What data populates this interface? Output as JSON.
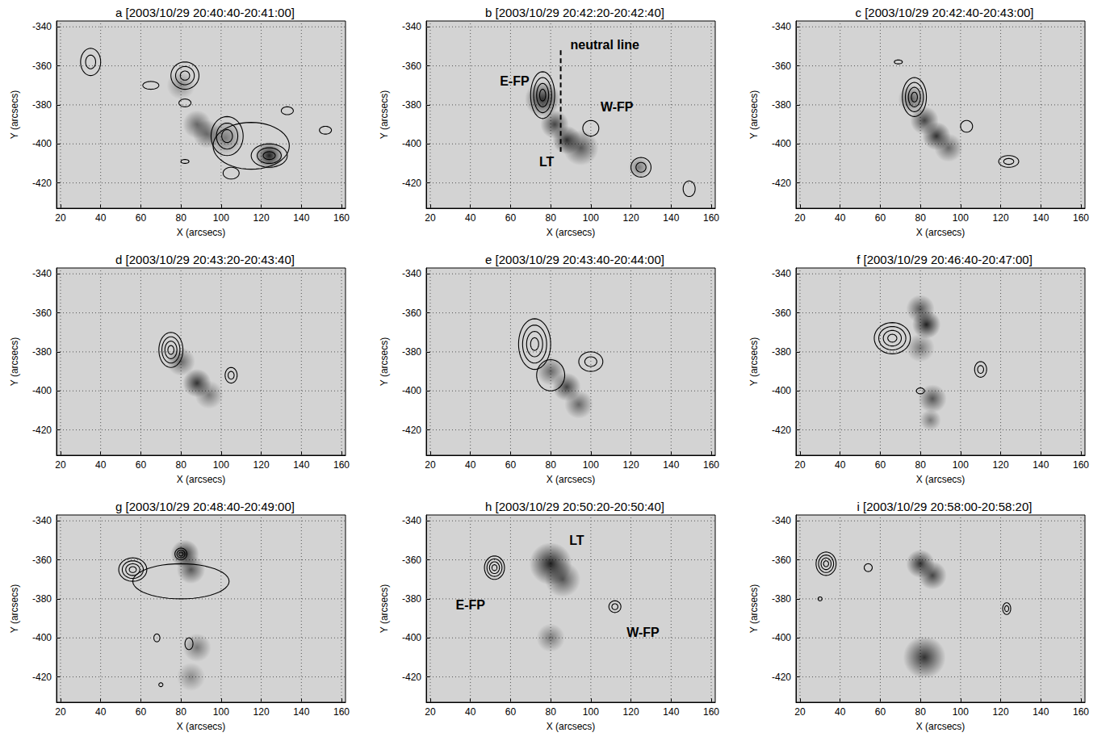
{
  "chart_data": [
    {
      "type": "contour",
      "title": "a [2003/10/29 20:40:40-20:41:00]",
      "x_label": "X (arcsecs)",
      "y_label": "Y (arcsecs)",
      "xlim": [
        18,
        162
      ],
      "ylim": [
        -433,
        -337
      ],
      "xticks": [
        20,
        40,
        60,
        80,
        100,
        120,
        140,
        160
      ],
      "yticks": [
        -420,
        -400,
        -380,
        -360,
        -340
      ],
      "grid": true,
      "contours": [
        {
          "x": 35,
          "y": -358,
          "rx": 5,
          "ry": 7,
          "levels": 2
        },
        {
          "x": 82,
          "y": -365,
          "rx": 7,
          "ry": 7,
          "levels": 3
        },
        {
          "x": 65,
          "y": -370,
          "rx": 4,
          "ry": 2,
          "levels": 1
        },
        {
          "x": 82,
          "y": -379,
          "rx": 3,
          "ry": 2,
          "levels": 1
        },
        {
          "x": 133,
          "y": -383,
          "rx": 3,
          "ry": 2,
          "levels": 1
        },
        {
          "x": 152,
          "y": -393,
          "rx": 3,
          "ry": 2,
          "levels": 1
        },
        {
          "x": 82,
          "y": -409,
          "rx": 2,
          "ry": 1,
          "levels": 1
        },
        {
          "x": 105,
          "y": -415,
          "rx": 4,
          "ry": 3,
          "levels": 1
        },
        {
          "x": 103,
          "y": -396,
          "rx": 8,
          "ry": 10,
          "levels": 3
        },
        {
          "x": 124,
          "y": -406,
          "rx": 9,
          "ry": 6,
          "levels": 3
        },
        {
          "x": 115,
          "y": -401,
          "rx": 19,
          "ry": 12,
          "levels": 1
        }
      ],
      "emission": [
        {
          "x": 124,
          "y": -406,
          "r": 4,
          "intensity": 1
        },
        {
          "x": 88,
          "y": -390,
          "r": 4,
          "intensity": 0.6
        },
        {
          "x": 93,
          "y": -395,
          "r": 4,
          "intensity": 0.6
        },
        {
          "x": 102,
          "y": -397,
          "r": 5,
          "intensity": 0.5
        },
        {
          "x": 80,
          "y": -370,
          "r": 4,
          "intensity": 0.4
        }
      ],
      "annotations": [],
      "lines": []
    },
    {
      "type": "contour",
      "title": "b [2003/10/29 20:42:20-20:42:40]",
      "x_label": "X (arcsecs)",
      "y_label": "Y (arcsecs)",
      "xlim": [
        18,
        162
      ],
      "ylim": [
        -433,
        -337
      ],
      "xticks": [
        20,
        40,
        60,
        80,
        100,
        120,
        140,
        160
      ],
      "yticks": [
        -420,
        -400,
        -380,
        -360,
        -340
      ],
      "grid": true,
      "contours": [
        {
          "x": 76,
          "y": -375,
          "rx": 6,
          "ry": 12,
          "levels": 4
        },
        {
          "x": 100,
          "y": -392,
          "rx": 4,
          "ry": 4,
          "levels": 1
        },
        {
          "x": 125,
          "y": -412,
          "rx": 5,
          "ry": 5,
          "levels": 2
        },
        {
          "x": 149,
          "y": -423,
          "rx": 3,
          "ry": 4,
          "levels": 1
        }
      ],
      "emission": [
        {
          "x": 76,
          "y": -377,
          "r": 5,
          "intensity": 0.9
        },
        {
          "x": 82,
          "y": -390,
          "r": 4,
          "intensity": 0.8
        },
        {
          "x": 88,
          "y": -398,
          "r": 4,
          "intensity": 0.9
        },
        {
          "x": 95,
          "y": -402,
          "r": 5,
          "intensity": 0.7
        },
        {
          "x": 124,
          "y": -412,
          "r": 3,
          "intensity": 0.5
        }
      ],
      "annotations": [
        {
          "text": "E-FP",
          "x": 62,
          "y": -368
        },
        {
          "text": "W-FP",
          "x": 113,
          "y": -381
        },
        {
          "text": "LT",
          "x": 78,
          "y": -409
        },
        {
          "text": "neutral line",
          "x": 107,
          "y": -349
        }
      ],
      "lines": [
        {
          "x": [
            85,
            85
          ],
          "y": [
            -352,
            -404
          ],
          "line_style": "dashed"
        }
      ]
    },
    {
      "type": "contour",
      "title": "c [2003/10/29 20:42:40-20:43:00]",
      "x_label": "X (arcsecs)",
      "y_label": "Y (arcsecs)",
      "xlim": [
        18,
        162
      ],
      "ylim": [
        -433,
        -337
      ],
      "xticks": [
        20,
        40,
        60,
        80,
        100,
        120,
        140,
        160
      ],
      "yticks": [
        -420,
        -400,
        -380,
        -360,
        -340
      ],
      "grid": true,
      "contours": [
        {
          "x": 77,
          "y": -376,
          "rx": 6,
          "ry": 10,
          "levels": 4
        },
        {
          "x": 69,
          "y": -358,
          "rx": 2,
          "ry": 1,
          "levels": 1
        },
        {
          "x": 103,
          "y": -391,
          "rx": 3,
          "ry": 3,
          "levels": 1
        },
        {
          "x": 124,
          "y": -409,
          "rx": 5,
          "ry": 3,
          "levels": 2
        }
      ],
      "emission": [
        {
          "x": 76,
          "y": -377,
          "r": 4,
          "intensity": 0.6
        },
        {
          "x": 82,
          "y": -388,
          "r": 4,
          "intensity": 0.8
        },
        {
          "x": 88,
          "y": -396,
          "r": 4,
          "intensity": 0.9
        },
        {
          "x": 94,
          "y": -402,
          "r": 4,
          "intensity": 0.6
        }
      ],
      "annotations": [],
      "lines": []
    },
    {
      "type": "contour",
      "title": "d [2003/10/29 20:43:20-20:43:40]",
      "x_label": "X (arcsecs)",
      "y_label": "Y (arcsecs)",
      "xlim": [
        18,
        162
      ],
      "ylim": [
        -433,
        -337
      ],
      "xticks": [
        20,
        40,
        60,
        80,
        100,
        120,
        140,
        160
      ],
      "yticks": [
        -420,
        -400,
        -380,
        -360,
        -340
      ],
      "grid": true,
      "contours": [
        {
          "x": 75,
          "y": -379,
          "rx": 6,
          "ry": 9,
          "levels": 4
        },
        {
          "x": 105,
          "y": -392,
          "rx": 3,
          "ry": 4,
          "levels": 2
        }
      ],
      "emission": [
        {
          "x": 80,
          "y": -385,
          "r": 4,
          "intensity": 0.6
        },
        {
          "x": 88,
          "y": -396,
          "r": 4,
          "intensity": 0.9
        },
        {
          "x": 94,
          "y": -402,
          "r": 4,
          "intensity": 0.5
        }
      ],
      "annotations": [],
      "lines": []
    },
    {
      "type": "contour",
      "title": "e [2003/10/29 20:43:40-20:44:00]",
      "x_label": "X (arcsecs)",
      "y_label": "Y (arcsecs)",
      "xlim": [
        18,
        162
      ],
      "ylim": [
        -433,
        -337
      ],
      "xticks": [
        20,
        40,
        60,
        80,
        100,
        120,
        140,
        160
      ],
      "yticks": [
        -420,
        -400,
        -380,
        -360,
        -340
      ],
      "grid": true,
      "contours": [
        {
          "x": 72,
          "y": -376,
          "rx": 8,
          "ry": 13,
          "levels": 4
        },
        {
          "x": 80,
          "y": -392,
          "rx": 7,
          "ry": 8,
          "levels": 1
        },
        {
          "x": 100,
          "y": -385,
          "rx": 6,
          "ry": 5,
          "levels": 2
        }
      ],
      "emission": [
        {
          "x": 80,
          "y": -390,
          "r": 4,
          "intensity": 0.6
        },
        {
          "x": 88,
          "y": -398,
          "r": 4,
          "intensity": 0.8
        },
        {
          "x": 94,
          "y": -407,
          "r": 4,
          "intensity": 0.6
        }
      ],
      "annotations": [],
      "lines": []
    },
    {
      "type": "contour",
      "title": "f [2003/10/29 20:46:40-20:47:00]",
      "x_label": "X (arcsecs)",
      "y_label": "Y (arcsecs)",
      "xlim": [
        18,
        162
      ],
      "ylim": [
        -433,
        -337
      ],
      "xticks": [
        20,
        40,
        60,
        80,
        100,
        120,
        140,
        160
      ],
      "yticks": [
        -420,
        -400,
        -380,
        -360,
        -340
      ],
      "grid": true,
      "contours": [
        {
          "x": 66,
          "y": -373,
          "rx": 9,
          "ry": 8,
          "levels": 4
        },
        {
          "x": 110,
          "y": -389,
          "rx": 3,
          "ry": 4,
          "levels": 2
        },
        {
          "x": 80,
          "y": -400,
          "rx": 2,
          "ry": 1.5,
          "levels": 1
        }
      ],
      "emission": [
        {
          "x": 83,
          "y": -366,
          "r": 4,
          "intensity": 1
        },
        {
          "x": 80,
          "y": -358,
          "r": 4,
          "intensity": 0.7
        },
        {
          "x": 80,
          "y": -378,
          "r": 4,
          "intensity": 0.5
        },
        {
          "x": 86,
          "y": -404,
          "r": 4,
          "intensity": 0.7
        },
        {
          "x": 85,
          "y": -415,
          "r": 3,
          "intensity": 0.5
        }
      ],
      "annotations": [],
      "lines": []
    },
    {
      "type": "contour",
      "title": "g [2003/10/29 20:48:40-20:49:00]",
      "x_label": "X (arcsecs)",
      "y_label": "Y (arcsecs)",
      "xlim": [
        18,
        162
      ],
      "ylim": [
        -433,
        -337
      ],
      "xticks": [
        20,
        40,
        60,
        80,
        100,
        120,
        140,
        160
      ],
      "yticks": [
        -420,
        -400,
        -380,
        -360,
        -340
      ],
      "grid": true,
      "contours": [
        {
          "x": 56,
          "y": -365,
          "rx": 7,
          "ry": 6,
          "levels": 4
        },
        {
          "x": 80,
          "y": -357,
          "rx": 3,
          "ry": 3,
          "levels": 3
        },
        {
          "x": 80,
          "y": -371,
          "rx": 24,
          "ry": 9,
          "levels": 1
        },
        {
          "x": 68,
          "y": -400,
          "rx": 1.5,
          "ry": 2,
          "levels": 1
        },
        {
          "x": 84,
          "y": -403,
          "rx": 2,
          "ry": 3,
          "levels": 1
        },
        {
          "x": 70,
          "y": -424,
          "rx": 1,
          "ry": 1,
          "levels": 1
        }
      ],
      "emission": [
        {
          "x": 82,
          "y": -357,
          "r": 4,
          "intensity": 0.9
        },
        {
          "x": 85,
          "y": -365,
          "r": 4,
          "intensity": 0.7
        },
        {
          "x": 88,
          "y": -405,
          "r": 4,
          "intensity": 0.5
        },
        {
          "x": 85,
          "y": -420,
          "r": 4,
          "intensity": 0.4
        }
      ],
      "annotations": [],
      "lines": []
    },
    {
      "type": "contour",
      "title": "h [2003/10/29 20:50:20-20:50:40]",
      "x_label": "X (arcsecs)",
      "y_label": "Y (arcsecs)",
      "xlim": [
        18,
        162
      ],
      "ylim": [
        -433,
        -337
      ],
      "xticks": [
        20,
        40,
        60,
        80,
        100,
        120,
        140,
        160
      ],
      "yticks": [
        -420,
        -400,
        -380,
        -360,
        -340
      ],
      "grid": true,
      "contours": [
        {
          "x": 52,
          "y": -364,
          "rx": 5,
          "ry": 6,
          "levels": 4
        },
        {
          "x": 112,
          "y": -384,
          "rx": 3,
          "ry": 3,
          "levels": 2
        }
      ],
      "emission": [
        {
          "x": 80,
          "y": -362,
          "r": 6,
          "intensity": 1
        },
        {
          "x": 86,
          "y": -370,
          "r": 5,
          "intensity": 0.7
        },
        {
          "x": 80,
          "y": -400,
          "r": 4,
          "intensity": 0.5
        }
      ],
      "annotations": [
        {
          "text": "E-FP",
          "x": 40,
          "y": -383
        },
        {
          "text": "W-FP",
          "x": 126,
          "y": -397
        },
        {
          "text": "LT",
          "x": 93,
          "y": -350
        }
      ],
      "lines": []
    },
    {
      "type": "contour",
      "title": "i [2003/10/29 20:58:00-20:58:20]",
      "x_label": "X (arcsecs)",
      "y_label": "Y (arcsecs)",
      "xlim": [
        18,
        162
      ],
      "ylim": [
        -433,
        -337
      ],
      "xticks": [
        20,
        40,
        60,
        80,
        100,
        120,
        140,
        160
      ],
      "yticks": [
        -420,
        -400,
        -380,
        -360,
        -340
      ],
      "grid": true,
      "contours": [
        {
          "x": 33,
          "y": -362,
          "rx": 5,
          "ry": 6,
          "levels": 4
        },
        {
          "x": 54,
          "y": -364,
          "rx": 2,
          "ry": 2,
          "levels": 1
        },
        {
          "x": 30,
          "y": -380,
          "rx": 1,
          "ry": 1,
          "levels": 1
        },
        {
          "x": 123,
          "y": -385,
          "rx": 2,
          "ry": 3,
          "levels": 2
        }
      ],
      "emission": [
        {
          "x": 80,
          "y": -362,
          "r": 4,
          "intensity": 0.9
        },
        {
          "x": 86,
          "y": -368,
          "r": 4,
          "intensity": 0.8
        },
        {
          "x": 82,
          "y": -410,
          "r": 6,
          "intensity": 0.9
        }
      ],
      "annotations": [],
      "lines": []
    }
  ]
}
